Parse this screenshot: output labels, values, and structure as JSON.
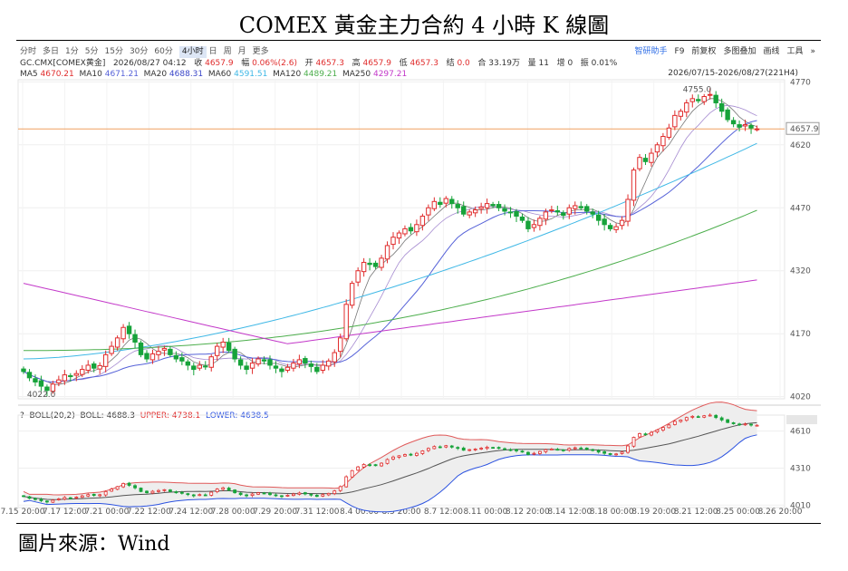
{
  "title": "COMEX 黃金主力合約 4 小時 K 線圖",
  "source": "圖片來源：Wind",
  "toolbar": {
    "timeframes": [
      "分时",
      "多日",
      "1分",
      "5分",
      "15分",
      "30分",
      "60分",
      "4小时",
      "日",
      "周",
      "月",
      "更多"
    ],
    "active": "4小时",
    "tools": [
      "智研助手",
      "F9",
      "前复权",
      "多图叠加",
      "画线",
      "工具",
      "»"
    ]
  },
  "info": {
    "symbol": "GC.CMX[COMEX黄金]",
    "datetime": "2026/08/27 04:12",
    "close_label": "收",
    "close": "4657.9",
    "change_label": "幅",
    "change": "0.06%(2.6)",
    "open_label": "开",
    "open": "4657.3",
    "high_label": "高",
    "high": "4657.9",
    "low_label": "低",
    "low": "4657.3",
    "settle_label": "结",
    "settle": "0.0",
    "oi_label": "合",
    "oi": "33.19万",
    "vol_label": "量",
    "vol": "11",
    "inc_label": "增",
    "inc": "0",
    "amp_label": "振",
    "amp": "0.01%"
  },
  "range": "2026/07/15-2026/08/27(221H4)",
  "colors": {
    "up": "#e02c2c",
    "down": "#17a33a",
    "ma5": "#666666",
    "ma10": "#888888",
    "ma20": "#5662d8",
    "ma60": "#3fb8e6",
    "ma120": "#4cae4c",
    "ma250": "#c338c9",
    "boll_upper": "#e05a5a",
    "boll_lower": "#2b52e0",
    "boll_mid": "#555555",
    "price_line": "#f0a060"
  },
  "ma": [
    {
      "name": "MA5",
      "value": "4670.21",
      "color": "#e02c2c"
    },
    {
      "name": "MA10",
      "value": "4671.21",
      "color": "#5662d8"
    },
    {
      "name": "MA20",
      "value": "4688.31",
      "color": "#3a46c8"
    },
    {
      "name": "MA60",
      "value": "4591.51",
      "color": "#3fb8e6"
    },
    {
      "name": "MA120",
      "value": "4489.21",
      "color": "#4cae4c"
    },
    {
      "name": "MA250",
      "value": "4297.21",
      "color": "#c338c9"
    }
  ],
  "boll": {
    "label": "BOLL(20,2)",
    "mid_label": "BOLL",
    "mid": "4688.3",
    "upper_label": "UPPER",
    "upper": "4738.1",
    "lower_label": "LOWER",
    "lower": "4638.5"
  },
  "chart_data": {
    "type": "candlestick",
    "main_panel": {
      "y_ticks": [
        4020,
        4170,
        4320,
        4470,
        4620,
        4770
      ],
      "ylim": [
        4015,
        4775
      ],
      "current_price": 4657.9,
      "high_marker": 4755.0,
      "low_marker": 4022.0
    },
    "boll_panel": {
      "y_ticks": [
        4010,
        4310,
        4610
      ],
      "ylim": [
        3990,
        4740
      ]
    },
    "x_ticks": [
      "7.15 20:00",
      "7.17 12:00",
      "7.21 00:00",
      "7.22 12:00",
      "7.24 12:00",
      "7.28 00:00",
      "7.29 20:00",
      "7.31 12:00",
      "8.4 00:00",
      "8.5 20:00",
      "8.7 12:00",
      "8.11 00:00",
      "8.12 20:00",
      "8.14 12:00",
      "8.18 00:00",
      "8.19 20:00",
      "8.21 12:00",
      "8.25 00:00",
      "8.26 20:00"
    ],
    "closes": [
      4080,
      4065,
      4055,
      4045,
      4035,
      4050,
      4060,
      4072,
      4068,
      4075,
      4085,
      4095,
      4088,
      4094,
      4120,
      4140,
      4160,
      4185,
      4170,
      4150,
      4120,
      4110,
      4122,
      4128,
      4135,
      4120,
      4110,
      4105,
      4095,
      4085,
      4095,
      4092,
      4115,
      4140,
      4150,
      4130,
      4110,
      4095,
      4085,
      4100,
      4110,
      4105,
      4095,
      4088,
      4080,
      4090,
      4100,
      4108,
      4100,
      4092,
      4080,
      4095,
      4105,
      4125,
      4160,
      4240,
      4290,
      4320,
      4340,
      4335,
      4330,
      4350,
      4380,
      4400,
      4410,
      4420,
      4415,
      4430,
      4450,
      4470,
      4485,
      4478,
      4492,
      4480,
      4470,
      4455,
      4460,
      4465,
      4472,
      4480,
      4475,
      4470,
      4462,
      4458,
      4450,
      4440,
      4420,
      4430,
      4445,
      4460,
      4465,
      4460,
      4452,
      4470,
      4475,
      4470,
      4462,
      4455,
      4440,
      4430,
      4420,
      4425,
      4440,
      4490,
      4560,
      4590,
      4580,
      4600,
      4620,
      4640,
      4660,
      4690,
      4700,
      4720,
      4730,
      4725,
      4735,
      4740,
      4720,
      4700,
      4680,
      4670,
      4662,
      4668,
      4660,
      4658
    ],
    "boll_levels": {
      "upper": 4738.1,
      "mid": 4688.3,
      "lower": 4638.5
    }
  }
}
